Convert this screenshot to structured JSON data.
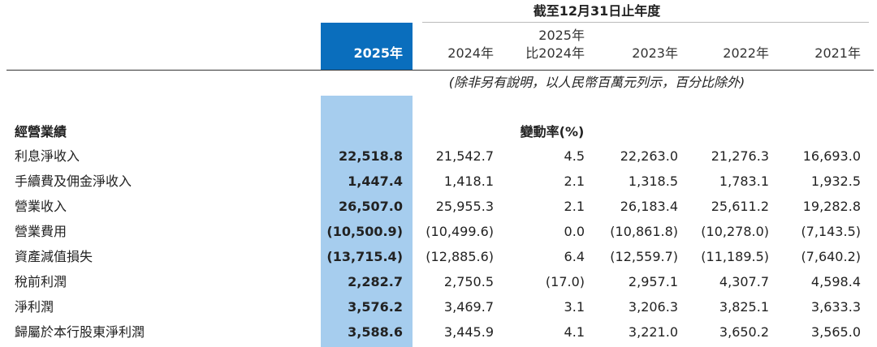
{
  "header": {
    "period": "截至12月31日止年度",
    "columns": [
      [
        "2025年"
      ],
      [
        "2024年"
      ],
      [
        "2025年",
        "比2024年"
      ],
      [
        "2023年"
      ],
      [
        "2022年"
      ],
      [
        "2021年"
      ]
    ]
  },
  "note": "(除非另有說明，以人民幣百萬元列示，百分比除外)",
  "section": {
    "title": "經營業績",
    "change_label": "變動率(%)"
  },
  "rows": [
    {
      "label": "利息淨收入",
      "values": [
        "22,518.8",
        "21,542.7",
        "4.5",
        "22,263.0",
        "21,276.3",
        "16,693.0"
      ]
    },
    {
      "label": "手續費及佣金淨收入",
      "values": [
        "1,447.4",
        "1,418.1",
        "2.1",
        "1,318.5",
        "1,783.1",
        "1,932.5"
      ]
    },
    {
      "label": "營業收入",
      "values": [
        "26,507.0",
        "25,955.3",
        "2.1",
        "26,183.4",
        "25,611.2",
        "19,282.8"
      ]
    },
    {
      "label": "營業費用",
      "values": [
        "(10,500.9)",
        "(10,499.6)",
        "0.0",
        "(10,861.8)",
        "(10,278.0)",
        "(7,143.5)"
      ]
    },
    {
      "label": "資產減值損失",
      "values": [
        "(13,715.4)",
        "(12,885.6)",
        "6.4",
        "(12,559.7)",
        "(11,189.5)",
        "(7,640.2)"
      ]
    },
    {
      "label": "稅前利潤",
      "values": [
        "2,282.7",
        "2,750.5",
        "(17.0)",
        "2,957.1",
        "4,307.7",
        "4,598.4"
      ]
    },
    {
      "label": "淨利潤",
      "values": [
        "3,576.2",
        "3,469.7",
        "3.1",
        "3,206.3",
        "3,825.1",
        "3,633.3"
      ]
    },
    {
      "label": "歸屬於本行股東淨利潤",
      "values": [
        "3,588.6",
        "3,445.9",
        "4.1",
        "3,221.0",
        "3,650.2",
        "3,565.0"
      ]
    }
  ]
}
